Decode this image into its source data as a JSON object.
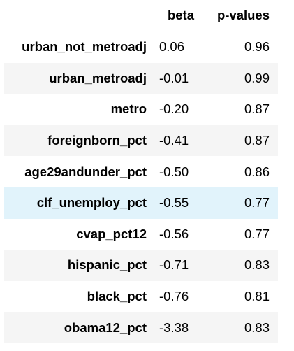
{
  "table": {
    "columns": [
      "",
      "beta",
      "p-values"
    ],
    "rows": [
      {
        "index": "urban_not_metroadj",
        "beta": "0.06",
        "pvalue": "0.96"
      },
      {
        "index": "urban_metroadj",
        "beta": "-0.01",
        "pvalue": "0.99"
      },
      {
        "index": "metro",
        "beta": "-0.20",
        "pvalue": "0.87"
      },
      {
        "index": "foreignborn_pct",
        "beta": "-0.41",
        "pvalue": "0.87"
      },
      {
        "index": "age29andunder_pct",
        "beta": "-0.50",
        "pvalue": "0.86"
      },
      {
        "index": "clf_unemploy_pct",
        "beta": "-0.55",
        "pvalue": "0.77"
      },
      {
        "index": "cvap_pct12",
        "beta": "-0.56",
        "pvalue": "0.77"
      },
      {
        "index": "hispanic_pct",
        "beta": "-0.71",
        "pvalue": "0.83"
      },
      {
        "index": "black_pct",
        "beta": "-0.76",
        "pvalue": "0.81"
      },
      {
        "index": "obama12_pct",
        "beta": "-3.38",
        "pvalue": "0.83"
      }
    ]
  },
  "colors": {
    "row_stripe": "#f5f5f5",
    "row_hover": "#e1f3fb",
    "header_border": "#c4c4c4"
  },
  "highlighted_row": "clf_unemploy_pct"
}
